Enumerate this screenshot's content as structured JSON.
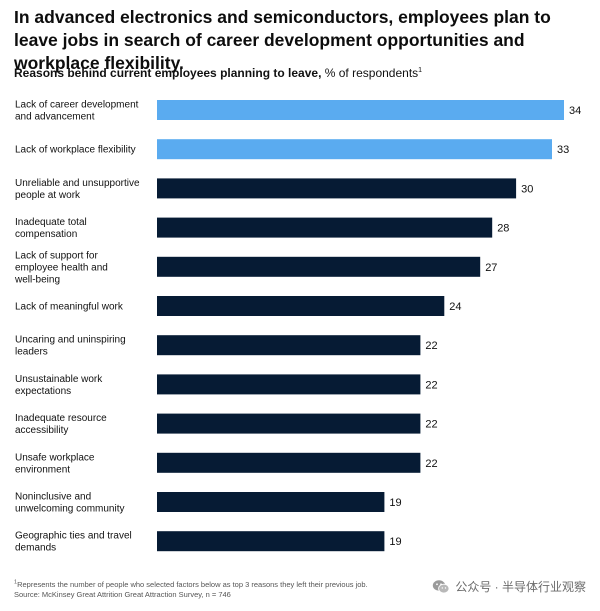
{
  "title": "In advanced electronics and semiconductors, employees plan to leave jobs in search of career development opportunities and workplace flexibility.",
  "subtitle": {
    "bold": "Reasons behind current employees planning to leave,",
    "normal": " % of respondents",
    "sup": "1"
  },
  "footnote": {
    "sup": "1",
    "line1": "Represents the number of people who selected factors below as top 3 reasons they left their previous job.",
    "line2": "Source: McKinsey Great Attrition Great Attraction Survey, n = 746"
  },
  "watermark": {
    "icon": "wechat-icon",
    "text": "公众号 · 半导体行业观察"
  },
  "colors": {
    "highlight": "#5aabf0",
    "dark": "#061b34",
    "text": "#111111"
  },
  "chart_data": {
    "type": "bar",
    "orientation": "horizontal",
    "title": "Reasons behind current employees planning to leave, % of respondents",
    "xlabel": "",
    "ylabel": "",
    "xlim": [
      0,
      34
    ],
    "grid": false,
    "legend": "none",
    "categories": [
      [
        "Lack of career development",
        "and advancement"
      ],
      [
        "Lack of workplace flexibility"
      ],
      [
        "Unreliable and unsupportive",
        "people at work"
      ],
      [
        "Inadequate total",
        "compensation"
      ],
      [
        "Lack of support for",
        "employee health and",
        "well-being"
      ],
      [
        "Lack of meaningful work"
      ],
      [
        "Uncaring and uninspiring",
        "leaders"
      ],
      [
        "Unsustainable work",
        "expectations"
      ],
      [
        "Inadequate resource",
        "accessibility"
      ],
      [
        "Unsafe workplace",
        "environment"
      ],
      [
        "Noninclusive and",
        "unwelcoming community"
      ],
      [
        "Geographic ties and travel",
        "demands"
      ]
    ],
    "values": [
      34,
      33,
      30,
      28,
      27,
      24,
      22,
      22,
      22,
      22,
      19,
      19
    ],
    "highlighted": [
      true,
      true,
      false,
      false,
      false,
      false,
      false,
      false,
      false,
      false,
      false,
      false
    ]
  }
}
